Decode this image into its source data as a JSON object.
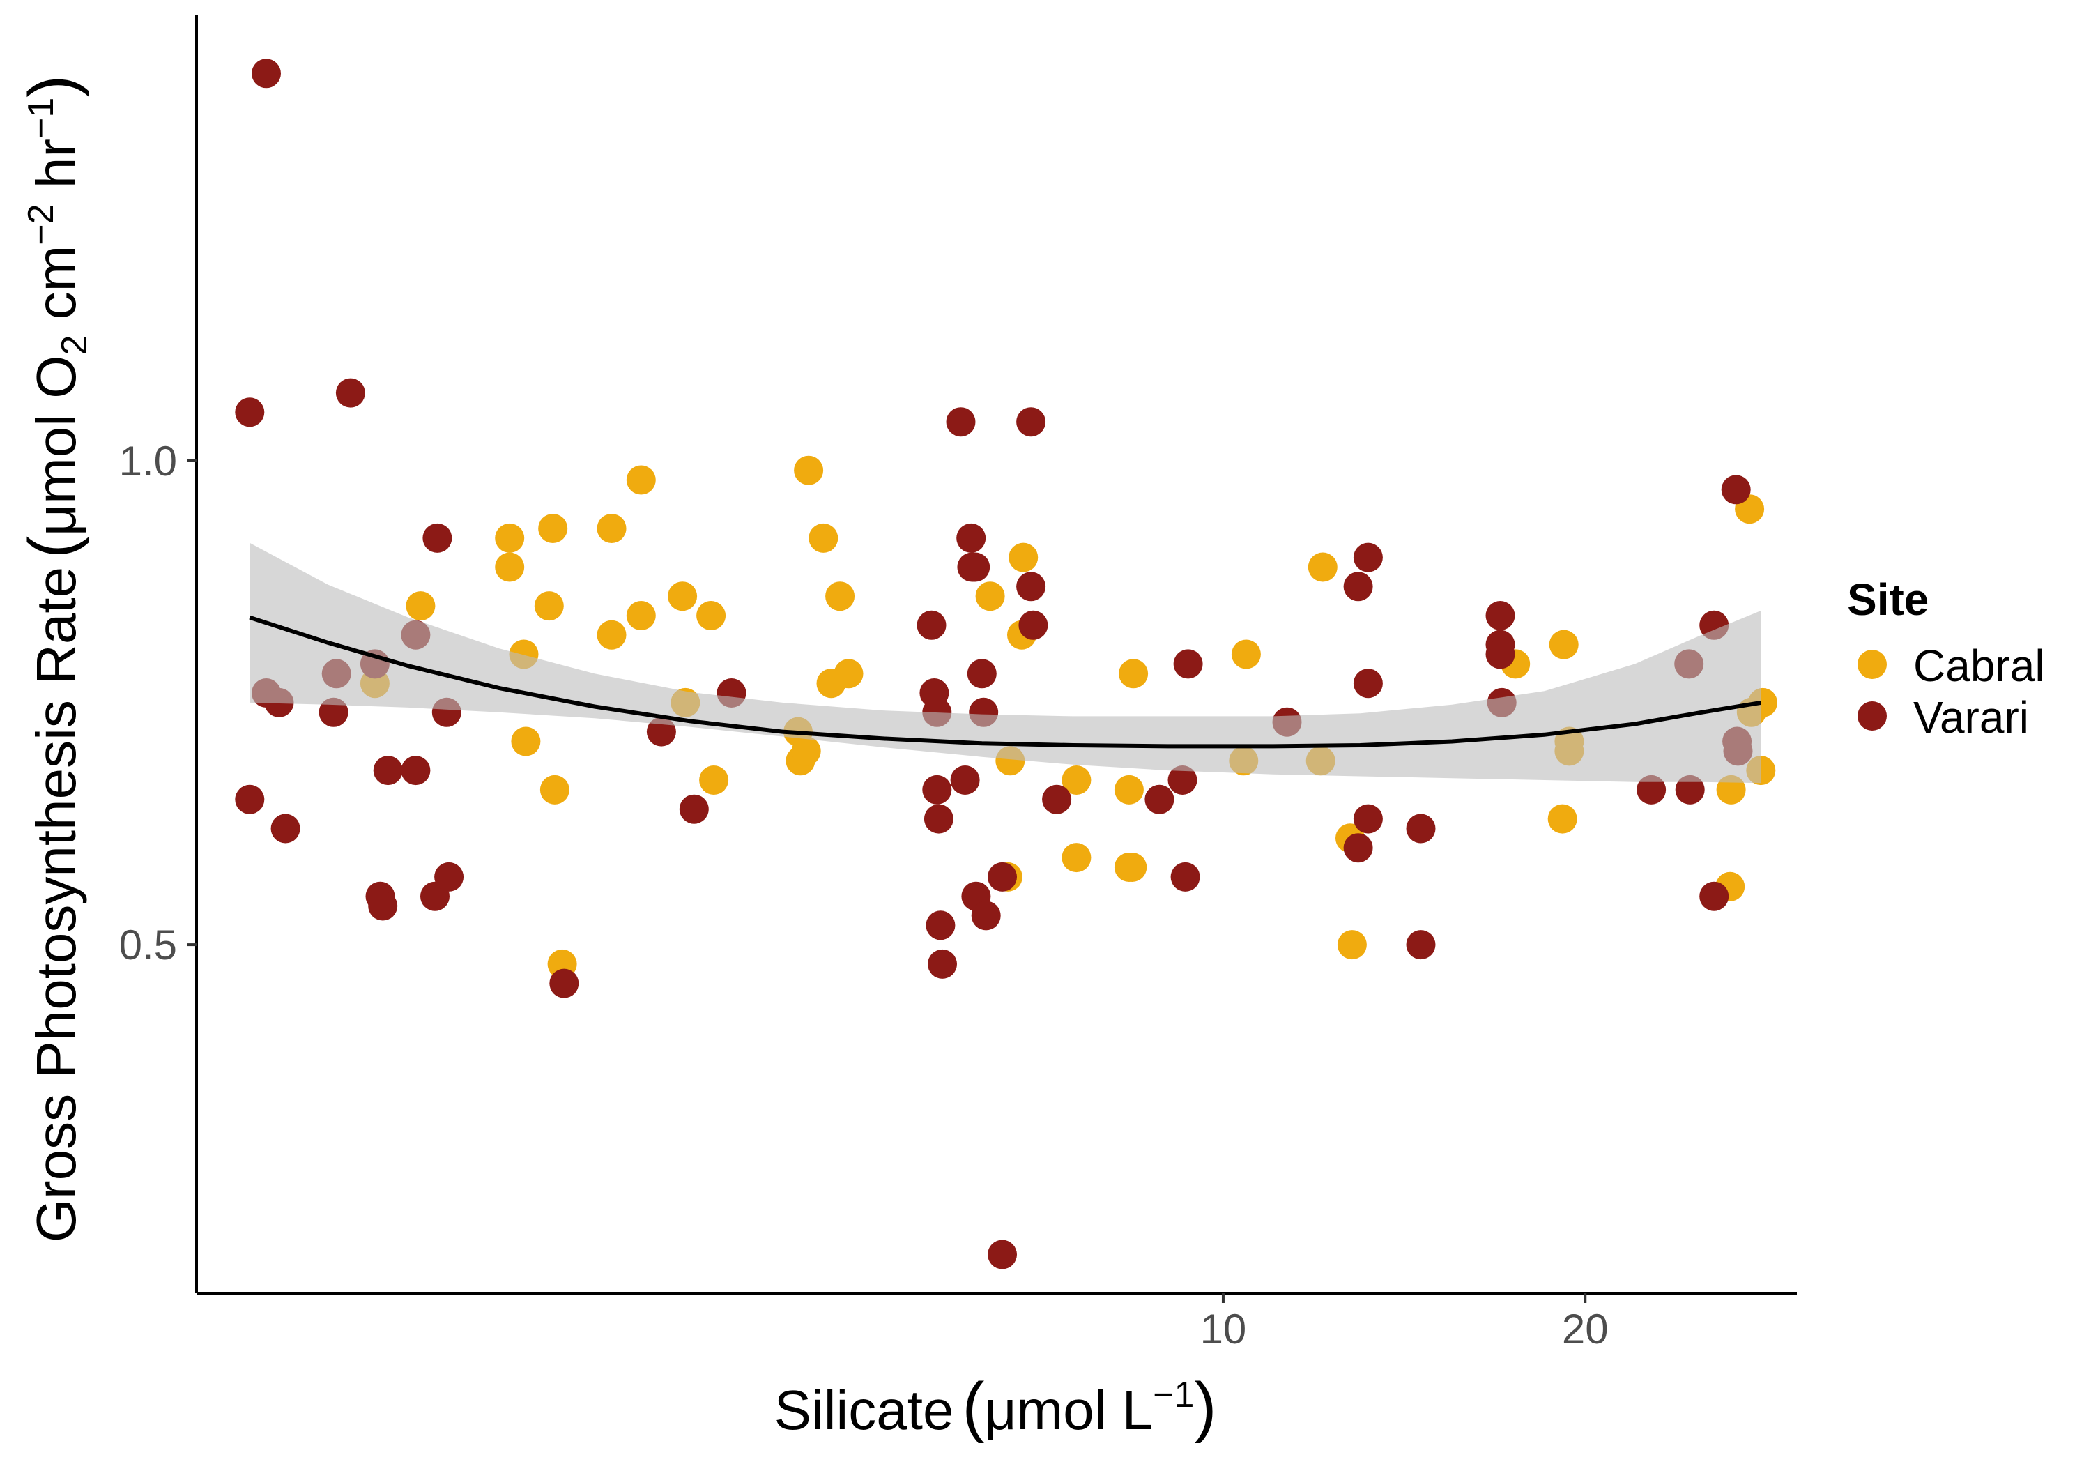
{
  "chart_data": {
    "type": "scatter",
    "title": "",
    "xlabel": {
      "text": "Silicate",
      "unit_prefix": "μmol L",
      "unit_exp": "−1"
    },
    "ylabel": {
      "text": "Gross Photosynthesis Rate",
      "p1": "μmol O",
      "sub": "2",
      "p2": " cm",
      "exp1": "−2",
      "p3": " hr",
      "exp2": "−1"
    },
    "x_scale": "log",
    "xlim": [
      1.4,
      30
    ],
    "ylim": [
      0.14,
      1.46
    ],
    "x_ticks": [
      {
        "value": 10,
        "label": "10"
      },
      {
        "value": 20,
        "label": "20"
      }
    ],
    "y_ticks": [
      {
        "value": 0.5,
        "label": "0.5"
      },
      {
        "value": 1.0,
        "label": "1.0"
      }
    ],
    "grid": false,
    "legend": {
      "title": "Site",
      "position": "right"
    },
    "series": [
      {
        "name": "Cabral",
        "color": "#f0ab0f",
        "points": [
          [
            1.97,
            0.77
          ],
          [
            2.15,
            0.85
          ],
          [
            2.55,
            0.89
          ],
          [
            2.55,
            0.92
          ],
          [
            2.62,
            0.8
          ],
          [
            2.63,
            0.71
          ],
          [
            2.75,
            0.85
          ],
          [
            2.77,
            0.93
          ],
          [
            2.78,
            0.66
          ],
          [
            2.82,
            0.48
          ],
          [
            3.1,
            0.82
          ],
          [
            3.1,
            0.93
          ],
          [
            3.28,
            0.84
          ],
          [
            3.28,
            0.98
          ],
          [
            3.55,
            0.86
          ],
          [
            3.57,
            0.75
          ],
          [
            3.75,
            0.84
          ],
          [
            3.77,
            0.67
          ],
          [
            4.43,
            0.72
          ],
          [
            4.45,
            0.69
          ],
          [
            4.5,
            0.7
          ],
          [
            4.52,
            0.99
          ],
          [
            4.65,
            0.92
          ],
          [
            4.72,
            0.77
          ],
          [
            4.8,
            0.86
          ],
          [
            4.88,
            0.78
          ],
          [
            6.4,
            0.86
          ],
          [
            6.62,
            0.57
          ],
          [
            6.65,
            0.69
          ],
          [
            6.8,
            0.82
          ],
          [
            6.82,
            0.9
          ],
          [
            7.55,
            0.67
          ],
          [
            7.55,
            0.59
          ],
          [
            8.35,
            0.66
          ],
          [
            8.35,
            0.58
          ],
          [
            8.4,
            0.58
          ],
          [
            8.42,
            0.78
          ],
          [
            10.4,
            0.69
          ],
          [
            10.45,
            0.8
          ],
          [
            12.05,
            0.69
          ],
          [
            12.1,
            0.89
          ],
          [
            12.75,
            0.61
          ],
          [
            12.8,
            0.5
          ],
          [
            17.5,
            0.79
          ],
          [
            19.15,
            0.63
          ],
          [
            19.2,
            0.81
          ],
          [
            19.4,
            0.7
          ],
          [
            19.4,
            0.71
          ],
          [
            26.4,
            0.56
          ],
          [
            26.45,
            0.66
          ],
          [
            27.4,
            0.95
          ],
          [
            27.5,
            0.74
          ],
          [
            28.0,
            0.68
          ],
          [
            28.1,
            0.75
          ]
        ]
      },
      {
        "name": "Varari",
        "color": "#8c1a16",
        "points": [
          [
            1.55,
            1.05
          ],
          [
            1.55,
            0.65
          ],
          [
            1.6,
            1.4
          ],
          [
            1.6,
            0.76
          ],
          [
            1.64,
            0.75
          ],
          [
            1.66,
            0.62
          ],
          [
            1.82,
            0.74
          ],
          [
            1.83,
            0.78
          ],
          [
            1.88,
            1.07
          ],
          [
            1.97,
            0.79
          ],
          [
            1.99,
            0.55
          ],
          [
            2.0,
            0.54
          ],
          [
            2.02,
            0.68
          ],
          [
            2.13,
            0.82
          ],
          [
            2.13,
            0.68
          ],
          [
            2.21,
            0.55
          ],
          [
            2.22,
            0.92
          ],
          [
            2.26,
            0.74
          ],
          [
            2.27,
            0.57
          ],
          [
            2.83,
            0.46
          ],
          [
            3.41,
            0.72
          ],
          [
            3.63,
            0.64
          ],
          [
            3.9,
            0.76
          ],
          [
            5.72,
            0.83
          ],
          [
            5.75,
            0.76
          ],
          [
            5.78,
            0.74
          ],
          [
            5.78,
            0.66
          ],
          [
            5.8,
            0.63
          ],
          [
            5.82,
            0.52
          ],
          [
            5.84,
            0.48
          ],
          [
            6.05,
            1.04
          ],
          [
            6.1,
            0.67
          ],
          [
            6.17,
            0.92
          ],
          [
            6.18,
            0.89
          ],
          [
            6.22,
            0.89
          ],
          [
            6.23,
            0.55
          ],
          [
            6.3,
            0.78
          ],
          [
            6.32,
            0.74
          ],
          [
            6.35,
            0.53
          ],
          [
            6.55,
            0.57
          ],
          [
            6.55,
            0.18
          ],
          [
            6.92,
            1.04
          ],
          [
            6.92,
            0.87
          ],
          [
            6.95,
            0.83
          ],
          [
            7.27,
            0.65
          ],
          [
            8.85,
            0.65
          ],
          [
            9.25,
            0.67
          ],
          [
            9.3,
            0.57
          ],
          [
            9.35,
            0.79
          ],
          [
            11.3,
            0.73
          ],
          [
            12.95,
            0.87
          ],
          [
            12.95,
            0.6
          ],
          [
            13.2,
            0.9
          ],
          [
            13.2,
            0.77
          ],
          [
            13.2,
            0.63
          ],
          [
            14.6,
            0.62
          ],
          [
            14.6,
            0.5
          ],
          [
            17.0,
            0.84
          ],
          [
            17.0,
            0.81
          ],
          [
            17.0,
            0.8
          ],
          [
            17.05,
            0.75
          ],
          [
            22.7,
            0.66
          ],
          [
            24.4,
            0.79
          ],
          [
            24.45,
            0.66
          ],
          [
            25.6,
            0.83
          ],
          [
            25.6,
            0.55
          ],
          [
            26.7,
            0.97
          ],
          [
            26.75,
            0.71
          ],
          [
            26.8,
            0.7
          ]
        ]
      }
    ],
    "fit": {
      "type": "quadratic-smooth",
      "color": "#000000",
      "ribbon_color": "#bdbdbd",
      "points": [
        [
          1.55,
          0.838,
          0.915,
          0.75
        ],
        [
          1.8,
          0.812,
          0.872,
          0.748
        ],
        [
          2.1,
          0.788,
          0.838,
          0.745
        ],
        [
          2.5,
          0.765,
          0.806,
          0.74
        ],
        [
          3.0,
          0.746,
          0.78,
          0.734
        ],
        [
          3.6,
          0.731,
          0.761,
          0.725
        ],
        [
          4.3,
          0.72,
          0.75,
          0.715
        ],
        [
          5.2,
          0.713,
          0.742,
          0.704
        ],
        [
          6.3,
          0.708,
          0.738,
          0.694
        ],
        [
          7.5,
          0.706,
          0.736,
          0.686
        ],
        [
          9.0,
          0.705,
          0.736,
          0.68
        ],
        [
          11.0,
          0.705,
          0.736,
          0.676
        ],
        [
          13.0,
          0.706,
          0.739,
          0.674
        ],
        [
          15.5,
          0.71,
          0.748,
          0.672
        ],
        [
          18.5,
          0.717,
          0.762,
          0.67
        ],
        [
          22.0,
          0.728,
          0.79,
          0.668
        ],
        [
          25.0,
          0.74,
          0.82,
          0.668
        ],
        [
          28.0,
          0.75,
          0.845,
          0.667
        ]
      ]
    }
  }
}
